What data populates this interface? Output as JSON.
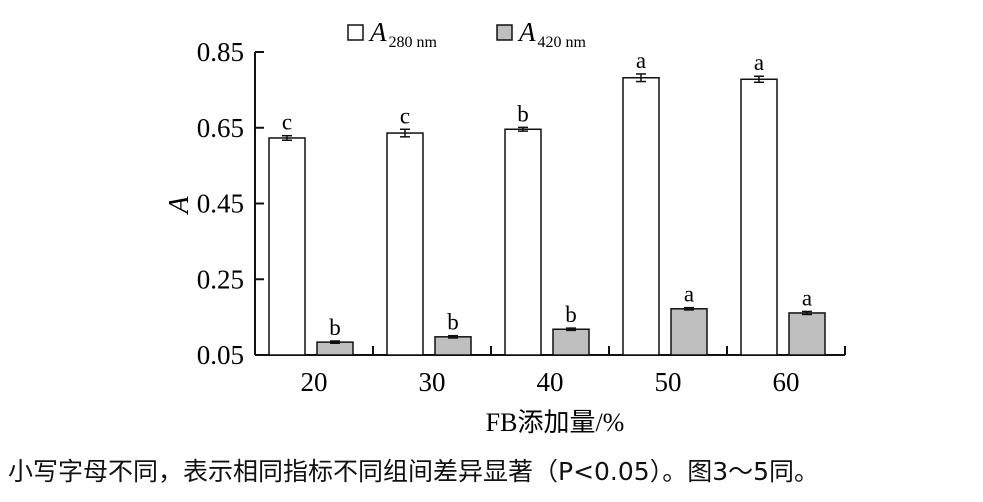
{
  "chart_data": {
    "type": "bar",
    "title": "",
    "xlabel": "FB添加量/%",
    "ylabel": "A",
    "ylim": [
      0.05,
      0.85
    ],
    "yticks": [
      0.05,
      0.25,
      0.45,
      0.65,
      0.85
    ],
    "yticklabels": [
      "0.05",
      "0.25",
      "0.45",
      "0.65",
      "0.85"
    ],
    "categories": [
      "20",
      "30",
      "40",
      "50",
      "60"
    ],
    "legend_position": "top",
    "grid": false,
    "series": [
      {
        "name": "A",
        "name_sub": "280 nm",
        "color": "#ffffff",
        "values": [
          0.623,
          0.636,
          0.646,
          0.782,
          0.778
        ],
        "errors": [
          0.006,
          0.01,
          0.005,
          0.01,
          0.008
        ],
        "letters": [
          "c",
          "c",
          "b",
          "a",
          "a"
        ]
      },
      {
        "name": "A",
        "name_sub": "420 nm",
        "color": "#bfbfbf",
        "values": [
          0.084,
          0.098,
          0.118,
          0.172,
          0.161
        ],
        "errors": [
          0.003,
          0.003,
          0.003,
          0.003,
          0.004
        ],
        "letters": [
          "b",
          "b",
          "b",
          "a",
          "a"
        ]
      }
    ]
  },
  "caption": "小写字母不同，表示相同指标不同组间差异显著（P<0.05）。图3～5同。"
}
